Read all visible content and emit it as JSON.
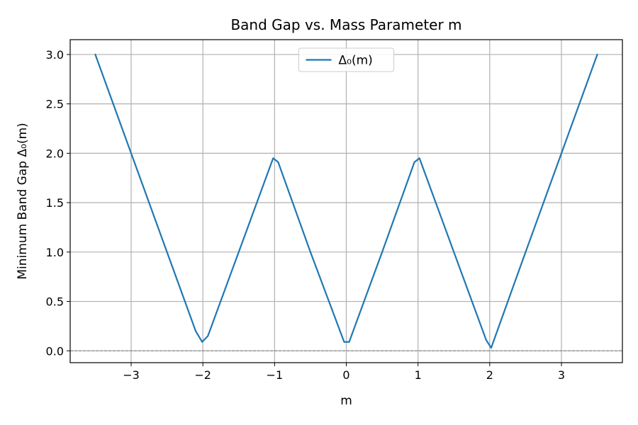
{
  "chart_data": {
    "type": "line",
    "title": "Band Gap vs. Mass Parameter m",
    "xlabel": "m",
    "ylabel": "Minimum Band Gap Δ₀(m)",
    "xlim": [
      -3.85,
      3.85
    ],
    "ylim": [
      -0.12,
      3.15
    ],
    "x_ticks": [
      -3,
      -2,
      -1,
      0,
      1,
      2,
      3
    ],
    "x_tick_labels": [
      "−3",
      "−2",
      "−1",
      "0",
      "1",
      "2",
      "3"
    ],
    "y_ticks": [
      0.0,
      0.5,
      1.0,
      1.5,
      2.0,
      2.5,
      3.0
    ],
    "y_tick_labels": [
      "0.0",
      "0.5",
      "1.0",
      "1.5",
      "2.0",
      "2.5",
      "3.0"
    ],
    "grid": true,
    "legend_position": "upper center",
    "reference_line": {
      "y": 0.0,
      "color": "#808080",
      "style": "dashed"
    },
    "series": [
      {
        "name": "Δ₀(m)",
        "color": "#1f77b4",
        "x": [
          -3.5,
          -3.0,
          -2.5,
          -2.1,
          -2.01,
          -1.93,
          -1.5,
          -1.02,
          -0.95,
          -0.5,
          -0.03,
          0.04,
          0.5,
          0.95,
          1.02,
          1.5,
          1.95,
          2.02,
          2.5,
          3.0,
          3.5
        ],
        "y": [
          3.0,
          2.0,
          1.0,
          0.2,
          0.09,
          0.15,
          1.0,
          1.95,
          1.91,
          1.0,
          0.09,
          0.09,
          1.0,
          1.91,
          1.95,
          1.0,
          0.11,
          0.03,
          1.0,
          2.0,
          3.0
        ]
      }
    ]
  }
}
